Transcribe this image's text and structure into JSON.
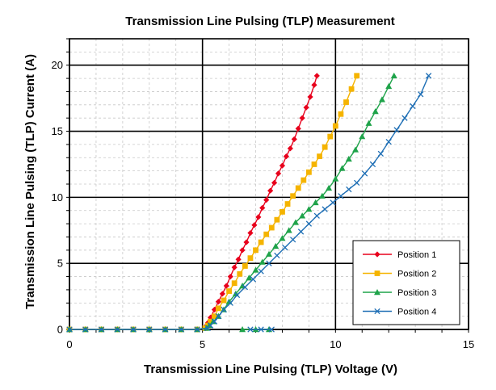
{
  "chart_data": {
    "type": "scatter",
    "title": "Transmission Line Pulsing (TLP) Measurement",
    "xlabel": "Transmission Line Pulsing (TLP) Voltage (V)",
    "ylabel": "Transmission Line Pulsing (TLP) Current (A)",
    "xlim": [
      0,
      15
    ],
    "ylim": [
      0,
      22
    ],
    "xticks": [
      0,
      5,
      10,
      15
    ],
    "yticks": [
      0,
      5,
      10,
      15,
      20
    ],
    "grid": true,
    "legend_position": "bottom-right",
    "series": [
      {
        "name": "Position 1",
        "color": "#e8001c",
        "marker": "diamond",
        "x": [
          0,
          0.6,
          1.2,
          1.8,
          2.4,
          3.0,
          3.6,
          4.2,
          4.8,
          5.1,
          5.15,
          5.2,
          5.3,
          5.45,
          5.6,
          5.75,
          5.9,
          6.05,
          6.2,
          6.35,
          6.5,
          6.65,
          6.8,
          6.95,
          7.1,
          7.25,
          7.4,
          7.55,
          7.7,
          7.85,
          8.0,
          8.15,
          8.3,
          8.45,
          8.6,
          8.75,
          8.9,
          9.05,
          9.2,
          9.3
        ],
        "y": [
          0,
          0,
          0,
          0,
          0,
          0,
          0,
          0,
          0,
          0.1,
          0.3,
          0.5,
          0.9,
          1.5,
          2.1,
          2.7,
          3.3,
          4.0,
          4.7,
          5.3,
          6.0,
          6.6,
          7.3,
          7.9,
          8.5,
          9.2,
          9.8,
          10.5,
          11.1,
          11.8,
          12.4,
          13.1,
          13.7,
          14.4,
          15.2,
          16.0,
          16.8,
          17.6,
          18.5,
          19.2
        ]
      },
      {
        "name": "Position 2",
        "color": "#f5b400",
        "marker": "square",
        "x": [
          0,
          0.6,
          1.2,
          1.8,
          2.4,
          3.0,
          3.6,
          4.2,
          4.8,
          5.1,
          5.2,
          5.3,
          5.45,
          5.6,
          5.8,
          6.0,
          6.2,
          6.4,
          6.6,
          6.8,
          7.0,
          7.2,
          7.4,
          7.6,
          7.8,
          8.0,
          8.2,
          8.4,
          8.6,
          8.8,
          9.0,
          9.2,
          9.4,
          9.6,
          9.8,
          10.0,
          10.2,
          10.4,
          10.6,
          10.8
        ],
        "y": [
          0,
          0,
          0,
          0,
          0,
          0,
          0,
          0,
          0,
          0.1,
          0.3,
          0.6,
          1.0,
          1.6,
          2.2,
          2.9,
          3.5,
          4.2,
          4.8,
          5.4,
          6.0,
          6.6,
          7.2,
          7.7,
          8.3,
          8.9,
          9.5,
          10.1,
          10.7,
          11.3,
          11.9,
          12.5,
          13.1,
          13.8,
          14.6,
          15.4,
          16.3,
          17.2,
          18.2,
          19.2
        ]
      },
      {
        "name": "Position 3",
        "color": "#1fa34a",
        "marker": "triangle",
        "x": [
          0,
          0.6,
          1.2,
          1.8,
          2.4,
          3.0,
          3.6,
          4.2,
          4.8,
          5.15,
          5.25,
          5.4,
          5.6,
          5.8,
          6.0,
          6.25,
          6.5,
          6.75,
          7.0,
          7.25,
          7.5,
          7.75,
          8.0,
          8.25,
          8.5,
          8.75,
          9.0,
          9.25,
          9.5,
          9.75,
          10.0,
          10.25,
          10.5,
          10.75,
          11.0,
          11.25,
          11.5,
          11.75,
          12.0,
          12.2,
          6.5,
          7.0,
          7.5
        ],
        "y": [
          0,
          0,
          0,
          0,
          0,
          0,
          0,
          0,
          0,
          0.1,
          0.3,
          0.6,
          1.0,
          1.5,
          2.1,
          2.7,
          3.3,
          3.9,
          4.5,
          5.1,
          5.7,
          6.3,
          6.9,
          7.5,
          8.1,
          8.6,
          9.1,
          9.6,
          10.1,
          10.7,
          11.4,
          12.2,
          12.9,
          13.6,
          14.6,
          15.6,
          16.5,
          17.4,
          18.4,
          19.2,
          0,
          0,
          0
        ]
      },
      {
        "name": "Position 4",
        "color": "#1f6fb5",
        "marker": "x",
        "x": [
          0,
          0.6,
          1.2,
          1.8,
          2.4,
          3.0,
          3.6,
          4.2,
          4.8,
          5.2,
          5.3,
          5.45,
          5.6,
          5.8,
          6.05,
          6.3,
          6.6,
          6.9,
          7.2,
          7.5,
          7.8,
          8.1,
          8.4,
          8.7,
          9.0,
          9.3,
          9.6,
          9.9,
          10.2,
          10.5,
          10.8,
          11.1,
          11.4,
          11.7,
          12.0,
          12.3,
          12.6,
          12.9,
          13.2,
          13.5,
          6.8,
          7.2,
          7.6
        ],
        "y": [
          0,
          0,
          0,
          0,
          0,
          0,
          0,
          0,
          0,
          0.1,
          0.3,
          0.6,
          1.0,
          1.5,
          2.0,
          2.6,
          3.2,
          3.8,
          4.4,
          5.0,
          5.6,
          6.2,
          6.8,
          7.4,
          8.0,
          8.6,
          9.1,
          9.6,
          10.1,
          10.6,
          11.1,
          11.8,
          12.5,
          13.3,
          14.2,
          15.1,
          16.0,
          16.9,
          17.8,
          19.2,
          0,
          0,
          0
        ]
      }
    ]
  }
}
